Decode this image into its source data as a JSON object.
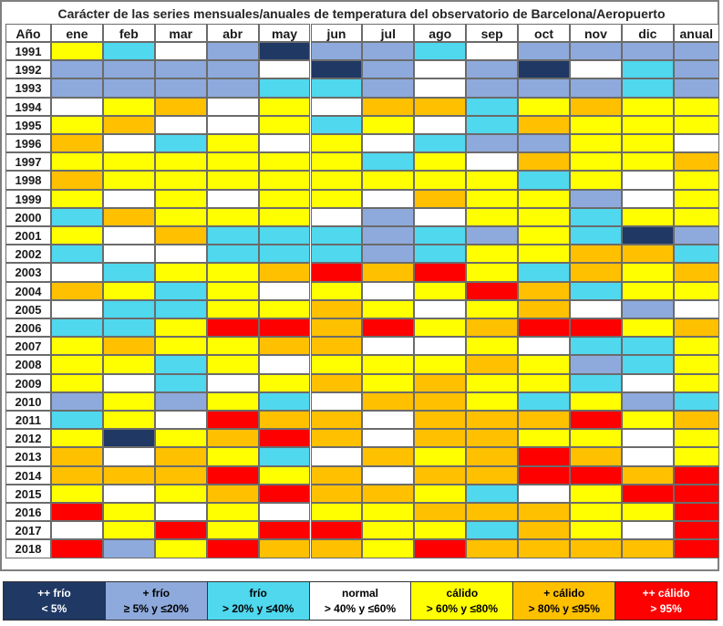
{
  "title": "Carácter de las series mensuales/anuales de temperatura del observatorio de Barcelona/Aeropuerto",
  "colors": {
    "MF": "#1f3864",
    "F": "#8eaadc",
    "fr": "#4fd8ee",
    "N": "#ffffff",
    "C": "#ffff00",
    "MC": "#ffc000",
    "EC": "#ff0000"
  },
  "chart_data": {
    "type": "heatmap",
    "title": "Carácter de las series mensuales/anuales de temperatura del observatorio de Barcelona/Aeropuerto",
    "corner_label": "Año",
    "columns": [
      "ene",
      "feb",
      "mar",
      "abr",
      "may",
      "jun",
      "jul",
      "ago",
      "sep",
      "oct",
      "nov",
      "dic",
      "anual"
    ],
    "rows": [
      "1991",
      "1992",
      "1993",
      "1994",
      "1995",
      "1996",
      "1997",
      "1998",
      "1999",
      "2000",
      "2001",
      "2002",
      "2003",
      "2004",
      "2005",
      "2006",
      "2007",
      "2008",
      "2009",
      "2010",
      "2011",
      "2012",
      "2013",
      "2014",
      "2015",
      "2016",
      "2017",
      "2018"
    ],
    "values": [
      [
        "C",
        "fr",
        "N",
        "F",
        "MF",
        "F",
        "F",
        "fr",
        "N",
        "F",
        "F",
        "F",
        "F"
      ],
      [
        "F",
        "F",
        "F",
        "F",
        "N",
        "MF",
        "F",
        "N",
        "F",
        "MF",
        "N",
        "fr",
        "F"
      ],
      [
        "F",
        "F",
        "F",
        "F",
        "fr",
        "fr",
        "F",
        "N",
        "F",
        "F",
        "F",
        "fr",
        "F"
      ],
      [
        "N",
        "C",
        "MC",
        "N",
        "C",
        "N",
        "MC",
        "MC",
        "fr",
        "C",
        "MC",
        "C",
        "C"
      ],
      [
        "C",
        "MC",
        "N",
        "N",
        "C",
        "fr",
        "C",
        "N",
        "fr",
        "MC",
        "C",
        "C",
        "C"
      ],
      [
        "MC",
        "N",
        "fr",
        "C",
        "N",
        "C",
        "N",
        "fr",
        "F",
        "F",
        "C",
        "C",
        "N"
      ],
      [
        "C",
        "C",
        "C",
        "C",
        "C",
        "C",
        "fr",
        "C",
        "N",
        "MC",
        "C",
        "C",
        "MC"
      ],
      [
        "MC",
        "C",
        "C",
        "C",
        "C",
        "C",
        "C",
        "C",
        "C",
        "fr",
        "C",
        "N",
        "C"
      ],
      [
        "C",
        "N",
        "C",
        "N",
        "C",
        "C",
        "N",
        "MC",
        "C",
        "C",
        "F",
        "N",
        "C"
      ],
      [
        "fr",
        "MC",
        "C",
        "C",
        "C",
        "N",
        "F",
        "N",
        "C",
        "C",
        "fr",
        "C",
        "C"
      ],
      [
        "C",
        "N",
        "MC",
        "fr",
        "fr",
        "fr",
        "F",
        "fr",
        "F",
        "C",
        "fr",
        "MF",
        "F"
      ],
      [
        "fr",
        "N",
        "N",
        "fr",
        "fr",
        "fr",
        "F",
        "fr",
        "C",
        "C",
        "MC",
        "MC",
        "fr"
      ],
      [
        "N",
        "fr",
        "C",
        "C",
        "MC",
        "EC",
        "MC",
        "EC",
        "C",
        "fr",
        "MC",
        "C",
        "MC"
      ],
      [
        "MC",
        "C",
        "fr",
        "C",
        "N",
        "C",
        "N",
        "C",
        "EC",
        "MC",
        "fr",
        "C",
        "C"
      ],
      [
        "N",
        "fr",
        "fr",
        "C",
        "C",
        "MC",
        "C",
        "N",
        "C",
        "MC",
        "N",
        "F",
        "N"
      ],
      [
        "fr",
        "fr",
        "C",
        "EC",
        "EC",
        "MC",
        "EC",
        "C",
        "MC",
        "EC",
        "EC",
        "C",
        "MC"
      ],
      [
        "C",
        "MC",
        "C",
        "C",
        "MC",
        "MC",
        "N",
        "N",
        "C",
        "N",
        "fr",
        "fr",
        "C"
      ],
      [
        "C",
        "C",
        "fr",
        "C",
        "N",
        "C",
        "C",
        "C",
        "MC",
        "C",
        "F",
        "fr",
        "C"
      ],
      [
        "C",
        "N",
        "fr",
        "N",
        "C",
        "MC",
        "C",
        "MC",
        "C",
        "C",
        "fr",
        "N",
        "C"
      ],
      [
        "F",
        "C",
        "F",
        "C",
        "fr",
        "N",
        "MC",
        "MC",
        "C",
        "fr",
        "C",
        "F",
        "fr"
      ],
      [
        "fr",
        "C",
        "N",
        "EC",
        "MC",
        "MC",
        "N",
        "MC",
        "MC",
        "MC",
        "EC",
        "C",
        "MC"
      ],
      [
        "C",
        "MF",
        "C",
        "MC",
        "EC",
        "MC",
        "N",
        "MC",
        "MC",
        "C",
        "C",
        "N",
        "C"
      ],
      [
        "MC",
        "N",
        "MC",
        "C",
        "fr",
        "N",
        "MC",
        "C",
        "MC",
        "EC",
        "MC",
        "N",
        "C"
      ],
      [
        "MC",
        "MC",
        "MC",
        "EC",
        "C",
        "MC",
        "N",
        "MC",
        "MC",
        "EC",
        "EC",
        "MC",
        "EC"
      ],
      [
        "C",
        "N",
        "C",
        "MC",
        "EC",
        "MC",
        "MC",
        "C",
        "fr",
        "N",
        "C",
        "EC",
        "EC"
      ],
      [
        "EC",
        "C",
        "N",
        "C",
        "N",
        "C",
        "C",
        "MC",
        "MC",
        "MC",
        "C",
        "C",
        "EC"
      ],
      [
        "N",
        "C",
        "EC",
        "C",
        "EC",
        "EC",
        "C",
        "C",
        "fr",
        "MC",
        "C",
        "N",
        "EC"
      ],
      [
        "EC",
        "F",
        "C",
        "EC",
        "MC",
        "MC",
        "C",
        "EC",
        "MC",
        "MC",
        "MC",
        "MC",
        "EC"
      ]
    ],
    "legend": [
      {
        "key": "MF",
        "line1": "++ frío",
        "line2": "< 5%"
      },
      {
        "key": "F",
        "line1": "+ frío",
        "line2": "≥ 5% y ≤20%"
      },
      {
        "key": "fr",
        "line1": "frío",
        "line2": "> 20% y ≤40%"
      },
      {
        "key": "N",
        "line1": "normal",
        "line2": "> 40% y ≤60%"
      },
      {
        "key": "C",
        "line1": "cálido",
        "line2": "> 60% y ≤80%"
      },
      {
        "key": "MC",
        "line1": "+ cálido",
        "line2": "> 80% y ≤95%"
      },
      {
        "key": "EC",
        "line1": "++ cálido",
        "line2": "> 95%"
      }
    ]
  }
}
